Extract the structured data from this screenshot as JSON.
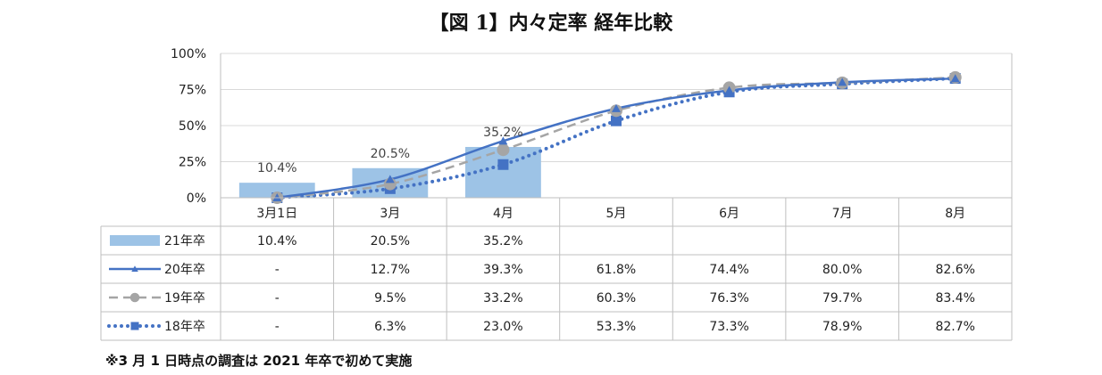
{
  "title": "【図 1】内々定率 経年比較",
  "footnote": "※3 月 1 日時点の調査は 2021 年卒で初めて実施",
  "chart_data": {
    "type": "bar",
    "title": "【図 1】内々定率 経年比較",
    "categories": [
      "3月1日",
      "3月",
      "4月",
      "5月",
      "6月",
      "7月",
      "8月"
    ],
    "yticks": [
      "0%",
      "25%",
      "50%",
      "75%",
      "100%"
    ],
    "ylim": [
      0,
      100
    ],
    "grid": true,
    "legend": "table-left",
    "series": [
      {
        "name": "21年卒",
        "kind": "bar",
        "color": "#9dc3e6",
        "values": [
          10.4,
          20.5,
          35.2,
          null,
          null,
          null,
          null
        ],
        "cells": [
          "10.4%",
          "20.5%",
          "35.2%",
          "",
          "",
          "",
          ""
        ],
        "data_labels": [
          "10.4%",
          "20.5%",
          "35.2%",
          "",
          "",
          "",
          ""
        ]
      },
      {
        "name": "20年卒",
        "kind": "line",
        "color": "#4472c4",
        "marker": "triangle",
        "values": [
          0,
          12.7,
          39.3,
          61.8,
          74.4,
          80.0,
          82.6
        ],
        "cells": [
          "-",
          "12.7%",
          "39.3%",
          "61.8%",
          "74.4%",
          "80.0%",
          "82.6%"
        ]
      },
      {
        "name": "19年卒",
        "kind": "dashed",
        "color": "#a5a5a5",
        "marker": "circle",
        "values": [
          0,
          9.5,
          33.2,
          60.3,
          76.3,
          79.7,
          83.4
        ],
        "cells": [
          "-",
          "9.5%",
          "33.2%",
          "60.3%",
          "76.3%",
          "79.7%",
          "83.4%"
        ]
      },
      {
        "name": "18年卒",
        "kind": "dotted",
        "color": "#4472c4",
        "marker": "square",
        "values": [
          0,
          6.3,
          23.0,
          53.3,
          73.3,
          78.9,
          82.7
        ],
        "cells": [
          "-",
          "6.3%",
          "23.0%",
          "53.3%",
          "73.3%",
          "78.9%",
          "82.7%"
        ]
      }
    ]
  }
}
